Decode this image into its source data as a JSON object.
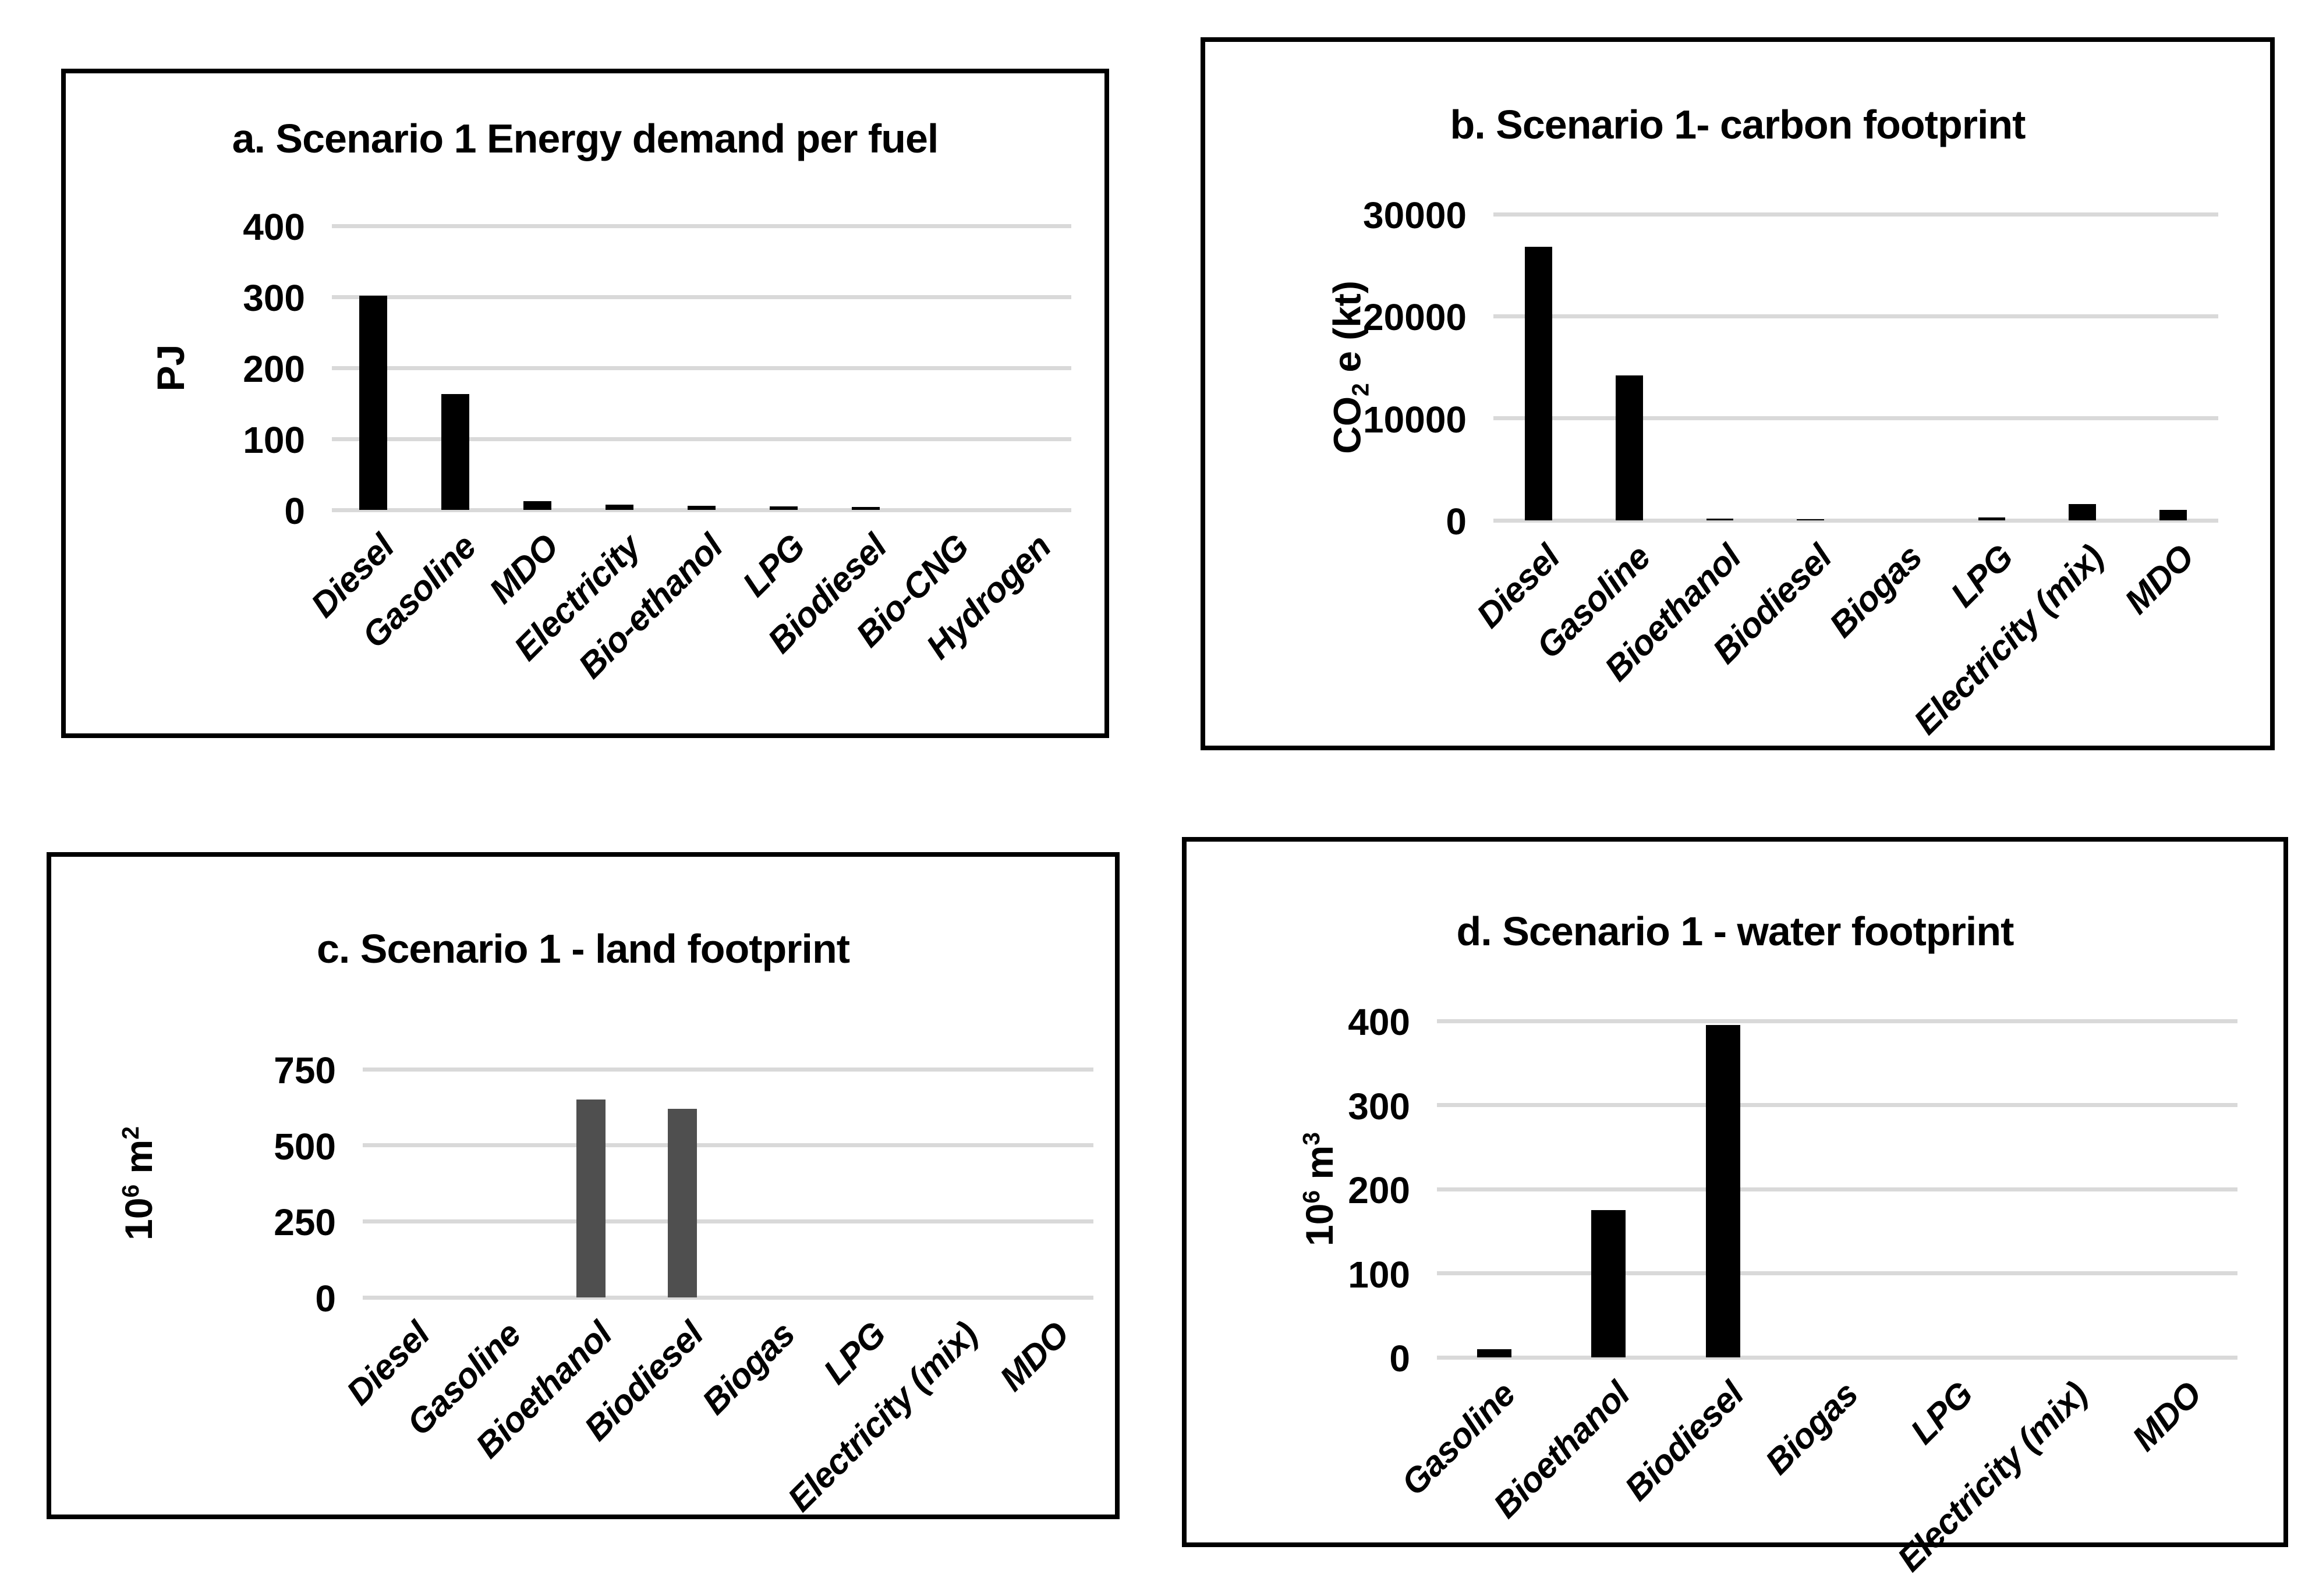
{
  "figure": {
    "background": "#ffffff",
    "panel_border_color": "#000000",
    "gridline_color": "#d9d9d9",
    "text_color": "#000000"
  },
  "chart_data": [
    {
      "id": "a",
      "type": "bar",
      "title": "a. Scenario 1 Energy demand per fuel",
      "ylabel_text": "PJ",
      "ylabel_rich": [
        {
          "text": "PJ"
        }
      ],
      "yticks": [
        0,
        100,
        200,
        300,
        400
      ],
      "ylim": [
        0,
        400
      ],
      "grid": "horizontal",
      "legend": "none",
      "bar_color": "#000000",
      "categories": [
        "Diesel",
        "Gasoline",
        "MDO",
        "Electricity",
        "Bio-ethanol",
        "LPG",
        "Biodiesel",
        "Bio-CNG",
        "Hydrogen"
      ],
      "values": [
        302,
        163,
        12,
        7,
        6,
        5,
        4,
        0,
        0
      ]
    },
    {
      "id": "b",
      "type": "bar",
      "title": "b. Scenario 1- carbon footprint",
      "ylabel_text": "CO2 e (kt)",
      "ylabel_rich": [
        {
          "text": "CO"
        },
        {
          "text": "2",
          "style": "sub"
        },
        {
          "text": " e (kt)"
        }
      ],
      "yticks": [
        0,
        10000,
        20000,
        30000
      ],
      "ylim": [
        0,
        30000
      ],
      "grid": "horizontal",
      "legend": "none",
      "bar_color": "#000000",
      "categories": [
        "Diesel",
        "Gasoline",
        "Bioethanol",
        "Biodiesel",
        "Biogas",
        "LPG",
        "Electricity (mix)",
        "MDO"
      ],
      "values": [
        26800,
        14200,
        150,
        100,
        0,
        300,
        1600,
        1000
      ]
    },
    {
      "id": "c",
      "type": "bar",
      "title": "c. Scenario 1 - land footprint",
      "ylabel_text": "10^6 m^2",
      "ylabel_rich": [
        {
          "text": "10"
        },
        {
          "text": "6",
          "style": "sup"
        },
        {
          "text": " m"
        },
        {
          "text": "2",
          "style": "sup"
        }
      ],
      "yticks": [
        0,
        250,
        500,
        750
      ],
      "ylim": [
        0,
        750
      ],
      "grid": "horizontal",
      "legend": "none",
      "bar_color": "#4f4f4f",
      "categories": [
        "Diesel",
        "Gasoline",
        "Bioethanol",
        "Biodiesel",
        "Biogas",
        "LPG",
        "Electricity (mix)",
        "MDO"
      ],
      "values": [
        0,
        0,
        650,
        620,
        0,
        0,
        0,
        0
      ]
    },
    {
      "id": "d",
      "type": "bar",
      "title": "d. Scenario 1 - water footprint",
      "ylabel_text": "10^6 m^3",
      "ylabel_rich": [
        {
          "text": "10"
        },
        {
          "text": "6",
          "style": "sup"
        },
        {
          "text": " m"
        },
        {
          "text": "3",
          "style": "sup"
        }
      ],
      "yticks": [
        0,
        100,
        200,
        300,
        400
      ],
      "ylim": [
        0,
        400
      ],
      "grid": "horizontal",
      "legend": "none",
      "bar_color": "#000000",
      "categories": [
        "Gasoline",
        "Bioethanol",
        "Biodiesel",
        "Biogas",
        "LPG",
        "Electricity (mix)",
        "MDO"
      ],
      "values": [
        10,
        175,
        395,
        0,
        0,
        0,
        0
      ]
    }
  ]
}
